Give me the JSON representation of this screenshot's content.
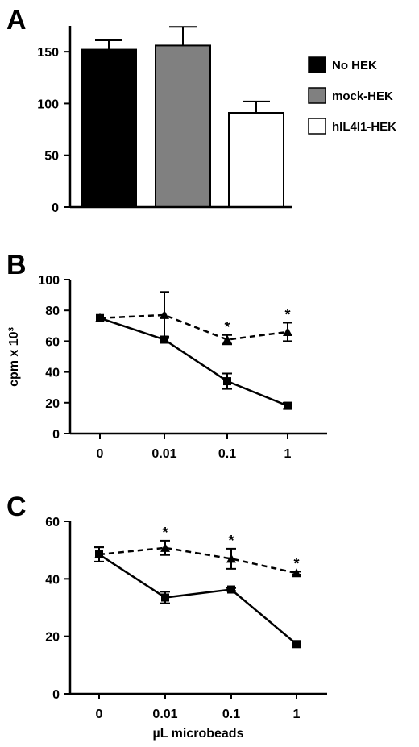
{
  "chart_data": [
    {
      "panel": "A",
      "type": "bar",
      "categories": [
        "No HEK",
        "mock-HEK",
        "hIL4I1-HEK"
      ],
      "values": [
        152,
        156,
        91
      ],
      "errors": [
        9,
        18,
        11
      ],
      "ylim": [
        0,
        175
      ],
      "yticks": [
        "0",
        "50",
        "100",
        "150"
      ],
      "xlabel": "",
      "ylabel": "",
      "legend": {
        "placement": "right",
        "entries": [
          {
            "name": "No HEK",
            "color": "#000000"
          },
          {
            "name": "mock-HEK",
            "color": "#808080"
          },
          {
            "name": "hIL4I1-HEK",
            "color": "#ffffff"
          }
        ]
      },
      "grid": false
    },
    {
      "panel": "B",
      "type": "line",
      "categories": [
        "0",
        "0.01",
        "0.1",
        "1"
      ],
      "series": [
        {
          "name": "",
          "marker": "triangle",
          "style": "dashed",
          "values": [
            75,
            77,
            61,
            66
          ],
          "errors": [
            0,
            15,
            3,
            6
          ]
        },
        {
          "name": "",
          "marker": "square",
          "style": "solid",
          "values": [
            75,
            61,
            34,
            18
          ],
          "errors": [
            0,
            2,
            5,
            2
          ]
        }
      ],
      "significance": [
        "",
        "",
        "*",
        "*"
      ],
      "ylim": [
        0,
        100
      ],
      "yticks": [
        "0",
        "20",
        "40",
        "60",
        "80",
        "100"
      ],
      "xlabel": "",
      "ylabel": "cpm x 10³",
      "grid": false
    },
    {
      "panel": "C",
      "type": "line",
      "categories": [
        "0",
        "0.01",
        "0.1",
        "1"
      ],
      "series": [
        {
          "name": "",
          "marker": "triangle",
          "style": "dashed",
          "values": [
            48.5,
            50.8,
            47,
            42
          ],
          "errors": [
            2.5,
            2.5,
            3.5,
            0.5
          ]
        },
        {
          "name": "",
          "marker": "square",
          "style": "solid",
          "values": [
            48.5,
            33.5,
            36.3,
            17.3
          ],
          "errors": [
            2.5,
            2,
            0.5,
            0.5
          ]
        }
      ],
      "significance": [
        "",
        "*",
        "*",
        "*"
      ],
      "ylim": [
        0,
        60
      ],
      "yticks": [
        "0",
        "20",
        "40",
        "60"
      ],
      "xlabel": "µL microbeads",
      "ylabel": "",
      "grid": false
    }
  ]
}
